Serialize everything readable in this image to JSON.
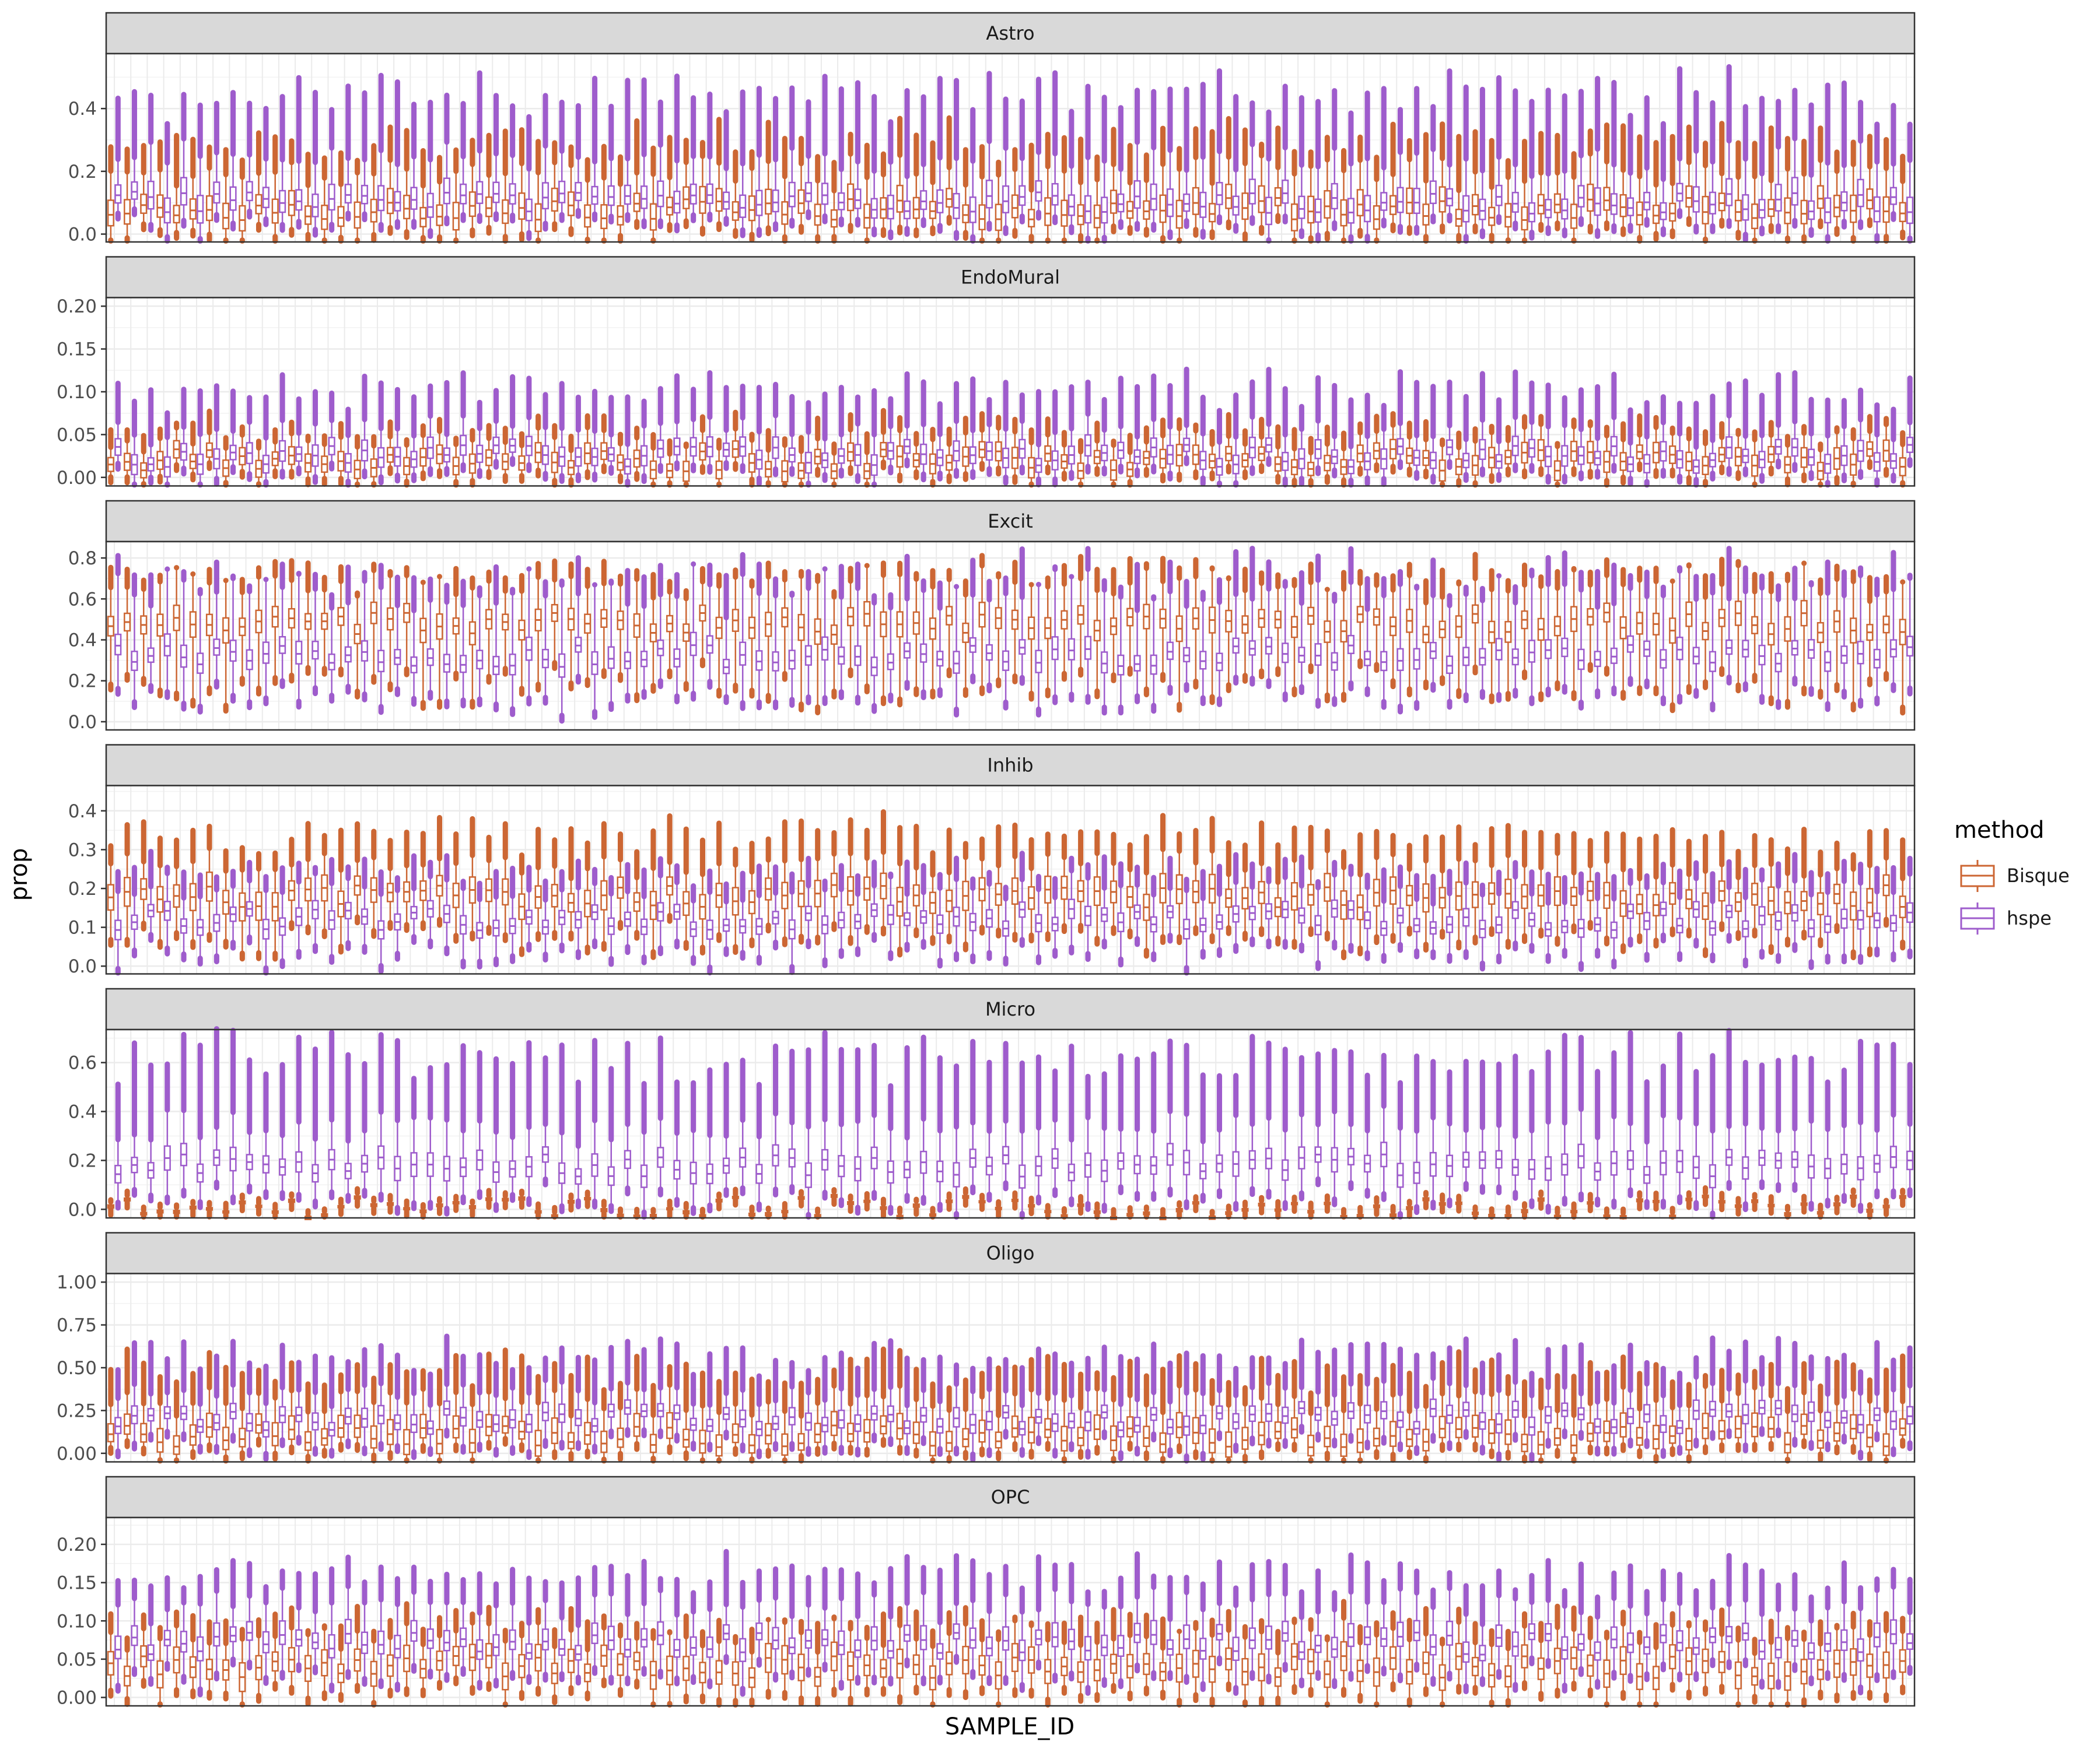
{
  "chart_data": {
    "type": "boxplot",
    "xlabel": "SAMPLE_ID",
    "ylabel": "prop",
    "n_samples": 110,
    "legend": {
      "title": "method",
      "placement": "right",
      "entries": [
        {
          "name": "Bisque",
          "color": "#CC6633"
        },
        {
          "name": "hspe",
          "color": "#9E5CCC"
        }
      ]
    },
    "facets": [
      {
        "title": "Astro",
        "ylim": [
          -0.025,
          0.575
        ],
        "ticks": [
          0.0,
          0.2,
          0.4
        ],
        "tick_labels": [
          "0.0",
          "0.2",
          "0.4"
        ],
        "series": {
          "Bisque": {
            "median": 0.08,
            "q1": 0.05,
            "q3": 0.12,
            "whisker_low": 0.01,
            "whisker_high": 0.2,
            "outlier_max": 0.3
          },
          "hspe": {
            "median": 0.1,
            "q1": 0.07,
            "q3": 0.14,
            "whisker_low": 0.03,
            "whisker_high": 0.24,
            "outlier_max": 0.44
          }
        }
      },
      {
        "title": "EndoMural",
        "ylim": [
          -0.01,
          0.21
        ],
        "ticks": [
          0.0,
          0.05,
          0.1,
          0.15,
          0.2
        ],
        "tick_labels": [
          "0.00",
          "0.05",
          "0.10",
          "0.15",
          "0.20"
        ],
        "series": {
          "Bisque": {
            "median": 0.02,
            "q1": 0.01,
            "q3": 0.03,
            "whisker_low": 0.002,
            "whisker_high": 0.045,
            "outlier_max": 0.058
          },
          "hspe": {
            "median": 0.025,
            "q1": 0.015,
            "q3": 0.035,
            "whisker_low": 0.005,
            "whisker_high": 0.055,
            "outlier_max": 0.1
          }
        }
      },
      {
        "title": "Excit",
        "ylim": [
          -0.04,
          0.88
        ],
        "ticks": [
          0.0,
          0.2,
          0.4,
          0.6,
          0.8
        ],
        "tick_labels": [
          "0.0",
          "0.2",
          "0.4",
          "0.6",
          "0.8"
        ],
        "series": {
          "Bisque": {
            "median": 0.48,
            "q1": 0.43,
            "q3": 0.53,
            "whisker_low": 0.18,
            "whisker_high": 0.68,
            "outlier_max": 0.73
          },
          "hspe": {
            "median": 0.32,
            "q1": 0.28,
            "q3": 0.37,
            "whisker_low": 0.13,
            "whisker_high": 0.64,
            "outlier_max": 0.73
          }
        }
      },
      {
        "title": "Inhib",
        "ylim": [
          -0.02,
          0.465
        ],
        "ticks": [
          0.0,
          0.1,
          0.2,
          0.3,
          0.4
        ],
        "tick_labels": [
          "0.0",
          "0.1",
          "0.2",
          "0.3",
          "0.4"
        ],
        "series": {
          "Bisque": {
            "median": 0.18,
            "q1": 0.15,
            "q3": 0.21,
            "whisker_low": 0.08,
            "whisker_high": 0.26,
            "outlier_max": 0.34
          },
          "hspe": {
            "median": 0.12,
            "q1": 0.1,
            "q3": 0.14,
            "whisker_low": 0.04,
            "whisker_high": 0.2,
            "outlier_max": 0.25
          }
        }
      },
      {
        "title": "Micro",
        "ylim": [
          -0.035,
          0.735
        ],
        "ticks": [
          0.0,
          0.2,
          0.4,
          0.6
        ],
        "tick_labels": [
          "0.0",
          "0.2",
          "0.4",
          "0.6"
        ],
        "series": {
          "Bisque": {
            "median": 0.01,
            "q1": 0.005,
            "q3": 0.015,
            "whisker_low": 0.0,
            "whisker_high": 0.025,
            "outlier_max": 0.04
          },
          "hspe": {
            "median": 0.18,
            "q1": 0.14,
            "q3": 0.22,
            "whisker_low": 0.05,
            "whisker_high": 0.34,
            "outlier_max": 0.62
          }
        }
      },
      {
        "title": "Oligo",
        "ylim": [
          -0.05,
          1.05
        ],
        "ticks": [
          0.0,
          0.25,
          0.5,
          0.75,
          1.0
        ],
        "tick_labels": [
          "0.00",
          "0.25",
          "0.50",
          "0.75",
          "1.00"
        ],
        "series": {
          "Bisque": {
            "median": 0.1,
            "q1": 0.05,
            "q3": 0.17,
            "whisker_low": 0.01,
            "whisker_high": 0.3,
            "outlier_max": 0.48
          },
          "hspe": {
            "median": 0.2,
            "q1": 0.16,
            "q3": 0.25,
            "whisker_low": 0.06,
            "whisker_high": 0.36,
            "outlier_max": 0.56
          }
        }
      },
      {
        "title": "OPC",
        "ylim": [
          -0.011,
          0.235
        ],
        "ticks": [
          0.0,
          0.05,
          0.1,
          0.15,
          0.2
        ],
        "tick_labels": [
          "0.00",
          "0.05",
          "0.10",
          "0.15",
          "0.20"
        ],
        "series": {
          "Bisque": {
            "median": 0.04,
            "q1": 0.025,
            "q3": 0.055,
            "whisker_low": 0.005,
            "whisker_high": 0.08,
            "outlier_max": 0.1
          },
          "hspe": {
            "median": 0.07,
            "q1": 0.06,
            "q3": 0.085,
            "whisker_low": 0.03,
            "whisker_high": 0.12,
            "outlier_max": 0.16
          }
        }
      }
    ]
  }
}
